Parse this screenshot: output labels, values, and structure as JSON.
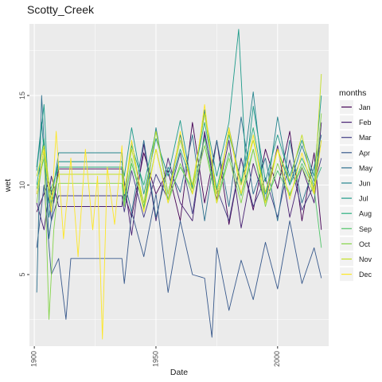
{
  "chart_data": {
    "type": "line",
    "title": "Scotty_Creek",
    "xlabel": "Date",
    "ylabel": "wet",
    "xlim": [
      1898,
      2021
    ],
    "ylim": [
      1.0,
      19.0
    ],
    "x_ticks": [
      1900,
      1950,
      2000
    ],
    "y_ticks": [
      5,
      10,
      15
    ],
    "grid": true,
    "legend": {
      "title": "months",
      "position": "right"
    },
    "series": [
      {
        "name": "Jan",
        "color": "#440154",
        "x": [
          1901,
          1906,
          1908,
          1910,
          1915,
          1920,
          1925,
          1930,
          1936,
          1937,
          1940,
          1945,
          1950,
          1955,
          1960,
          1965,
          1970,
          1975,
          1980,
          1985,
          1990,
          1995,
          2000,
          2005,
          2010,
          2015,
          2018
        ],
        "y": [
          8.5,
          10.2,
          9.0,
          10.9,
          10.9,
          10.9,
          10.9,
          10.9,
          10.9,
          9.5,
          8.2,
          11.8,
          9.5,
          10.8,
          8.0,
          13.5,
          9.0,
          12.5,
          7.8,
          11.5,
          8.6,
          12.0,
          9.8,
          13.0,
          8.0,
          11.8,
          7.5
        ]
      },
      {
        "name": "Feb",
        "color": "#482173",
        "x": [
          1901,
          1904,
          1907,
          1910,
          1915,
          1920,
          1925,
          1930,
          1936,
          1937,
          1940,
          1945,
          1950,
          1955,
          1960,
          1965,
          1970,
          1975,
          1980,
          1985,
          1990,
          1995,
          2000,
          2005,
          2010,
          2015,
          2018
        ],
        "y": [
          9.0,
          7.5,
          10.5,
          8.8,
          8.8,
          8.8,
          8.8,
          8.8,
          8.8,
          10.2,
          7.2,
          12.3,
          8.0,
          11.5,
          9.0,
          8.0,
          13.0,
          9.2,
          12.5,
          7.6,
          11.2,
          9.0,
          12.2,
          8.2,
          11.0,
          9.0,
          13.5
        ]
      },
      {
        "name": "Mar",
        "color": "#433E85",
        "x": [
          1901,
          1904,
          1907,
          1910,
          1915,
          1920,
          1925,
          1930,
          1936,
          1937,
          1940,
          1945,
          1950,
          1955,
          1960,
          1965,
          1970,
          1975,
          1980,
          1985,
          1990,
          1995,
          2000,
          2005,
          2010,
          2015,
          2018
        ],
        "y": [
          9.5,
          12.0,
          8.0,
          9.4,
          9.4,
          9.4,
          9.4,
          9.4,
          9.4,
          8.5,
          10.8,
          8.2,
          10.6,
          9.2,
          11.8,
          8.4,
          12.8,
          9.8,
          8.0,
          11.5,
          8.8,
          10.4,
          8.2,
          11.4,
          8.6,
          10.0,
          11.5
        ]
      },
      {
        "name": "Apr",
        "color": "#38598C",
        "x": [
          1901,
          1904,
          1907,
          1910,
          1913,
          1915,
          1920,
          1925,
          1930,
          1936,
          1937,
          1940,
          1945,
          1950,
          1955,
          1960,
          1965,
          1970,
          1973,
          1975,
          1980,
          1985,
          1990,
          1995,
          2000,
          2005,
          2010,
          2015,
          2018
        ],
        "y": [
          6.5,
          10.0,
          5.0,
          5.9,
          2.5,
          5.9,
          5.9,
          5.9,
          5.9,
          5.9,
          4.5,
          8.5,
          6.0,
          9.5,
          4.0,
          8.0,
          5.0,
          4.8,
          1.5,
          6.5,
          3.0,
          5.8,
          3.6,
          6.8,
          4.2,
          8.0,
          4.5,
          6.5,
          4.8
        ]
      },
      {
        "name": "May",
        "color": "#2D708E",
        "x": [
          1901,
          1903,
          1906,
          1910,
          1915,
          1920,
          1925,
          1930,
          1936,
          1937,
          1940,
          1945,
          1950,
          1955,
          1960,
          1965,
          1970,
          1975,
          1980,
          1985,
          1990,
          1995,
          2000,
          2005,
          2010,
          2015,
          2018
        ],
        "y": [
          4.0,
          15.0,
          7.0,
          11.3,
          11.3,
          11.3,
          11.3,
          11.3,
          11.3,
          10.2,
          8.5,
          12.5,
          8.2,
          11.0,
          9.6,
          12.8,
          8.0,
          12.5,
          8.8,
          13.8,
          9.5,
          11.5,
          8.0,
          12.5,
          9.0,
          11.0,
          12.8
        ]
      },
      {
        "name": "Jun",
        "color": "#25858E",
        "x": [
          1901,
          1903,
          1906,
          1910,
          1915,
          1920,
          1925,
          1930,
          1936,
          1937,
          1940,
          1945,
          1950,
          1955,
          1960,
          1965,
          1970,
          1975,
          1980,
          1985,
          1990,
          1995,
          2000,
          2005,
          2010,
          2015,
          2018
        ],
        "y": [
          11.0,
          13.5,
          8.2,
          11.8,
          11.8,
          11.8,
          11.8,
          11.8,
          11.8,
          9.0,
          12.5,
          8.6,
          13.2,
          9.5,
          12.8,
          9.8,
          14.2,
          9.0,
          13.2,
          10.0,
          15.2,
          9.0,
          13.8,
          10.0,
          12.2,
          10.2,
          12.5
        ]
      },
      {
        "name": "Jul",
        "color": "#1E9B8A",
        "x": [
          1901,
          1904,
          1906,
          1910,
          1915,
          1920,
          1925,
          1930,
          1936,
          1937,
          1940,
          1945,
          1950,
          1955,
          1960,
          1965,
          1970,
          1975,
          1980,
          1984,
          1987,
          1990,
          1995,
          2000,
          2005,
          2010,
          2015,
          2018
        ],
        "y": [
          10.8,
          14.5,
          9.0,
          11.3,
          11.3,
          11.3,
          11.3,
          11.3,
          11.3,
          10.5,
          13.2,
          9.5,
          12.6,
          10.5,
          13.6,
          9.8,
          14.0,
          10.5,
          13.5,
          18.7,
          10.8,
          14.4,
          10.2,
          12.8,
          10.5,
          12.5,
          10.5,
          15.0
        ]
      },
      {
        "name": "Aug",
        "color": "#2BB07F",
        "x": [
          1901,
          1904,
          1906,
          1910,
          1915,
          1920,
          1925,
          1930,
          1936,
          1937,
          1940,
          1945,
          1950,
          1955,
          1960,
          1965,
          1970,
          1975,
          1980,
          1985,
          1990,
          1995,
          2000,
          2005,
          2010,
          2015,
          2018
        ],
        "y": [
          10.0,
          12.6,
          9.5,
          11.0,
          11.0,
          11.0,
          11.0,
          11.0,
          11.0,
          9.6,
          12.2,
          10.0,
          13.0,
          9.5,
          12.0,
          10.0,
          13.5,
          9.8,
          12.8,
          10.2,
          13.2,
          9.5,
          12.0,
          10.0,
          11.5,
          10.0,
          11.0
        ]
      },
      {
        "name": "Sep",
        "color": "#51C56A",
        "x": [
          1901,
          1904,
          1907,
          1910,
          1915,
          1920,
          1925,
          1930,
          1936,
          1937,
          1940,
          1945,
          1950,
          1955,
          1960,
          1965,
          1970,
          1975,
          1980,
          1985,
          1990,
          1995,
          2000,
          2005,
          2010,
          2015,
          2018
        ],
        "y": [
          9.8,
          11.5,
          8.8,
          10.6,
          10.6,
          10.6,
          10.6,
          10.6,
          10.6,
          9.0,
          11.2,
          8.8,
          12.0,
          9.2,
          11.0,
          9.8,
          12.6,
          9.0,
          11.8,
          9.4,
          12.0,
          9.0,
          10.8,
          9.4,
          11.2,
          9.8,
          6.5
        ]
      },
      {
        "name": "Oct",
        "color": "#85D54A",
        "x": [
          1901,
          1904,
          1906,
          1908,
          1910,
          1915,
          1920,
          1925,
          1930,
          1936,
          1937,
          1940,
          1945,
          1950,
          1955,
          1960,
          1965,
          1970,
          1975,
          1980,
          1985,
          1990,
          1995,
          2000,
          2005,
          2010,
          2015,
          2018
        ],
        "y": [
          9.0,
          12.0,
          2.5,
          7.5,
          10.1,
          10.1,
          10.1,
          10.1,
          10.1,
          10.1,
          8.8,
          11.5,
          8.6,
          12.0,
          9.0,
          11.2,
          9.5,
          12.2,
          9.0,
          11.5,
          9.0,
          12.0,
          8.8,
          11.2,
          9.5,
          11.0,
          9.5,
          14.0
        ]
      },
      {
        "name": "Nov",
        "color": "#C2DF23",
        "x": [
          1901,
          1904,
          1907,
          1910,
          1915,
          1920,
          1925,
          1930,
          1936,
          1937,
          1940,
          1945,
          1950,
          1955,
          1960,
          1965,
          1970,
          1975,
          1980,
          1985,
          1990,
          1995,
          2000,
          2005,
          2010,
          2015,
          2018
        ],
        "y": [
          10.5,
          12.2,
          9.2,
          10.6,
          10.6,
          10.6,
          10.6,
          10.6,
          10.6,
          9.6,
          12.0,
          9.0,
          13.0,
          9.5,
          12.5,
          10.0,
          14.0,
          9.5,
          13.0,
          10.0,
          12.5,
          9.6,
          12.0,
          10.2,
          12.8,
          9.6,
          16.2
        ]
      },
      {
        "name": "Dec",
        "color": "#FDE725",
        "x": [
          1901,
          1904,
          1907,
          1909,
          1912,
          1915,
          1918,
          1921,
          1924,
          1926,
          1928,
          1930,
          1933,
          1936,
          1937,
          1940,
          1945,
          1950,
          1955,
          1960,
          1965,
          1970,
          1975,
          1980,
          1985,
          1990,
          1995,
          2000,
          2005,
          2010,
          2015,
          2018
        ],
        "y": [
          9.5,
          12.0,
          8.5,
          13.0,
          7.0,
          11.5,
          6.0,
          12.0,
          7.5,
          10.5,
          1.4,
          11.0,
          7.8,
          12.2,
          9.5,
          12.5,
          8.5,
          12.0,
          9.0,
          13.0,
          9.5,
          14.5,
          9.0,
          13.2,
          9.5,
          12.8,
          9.0,
          12.0,
          9.2,
          11.8,
          9.5,
          12.5
        ]
      }
    ]
  }
}
